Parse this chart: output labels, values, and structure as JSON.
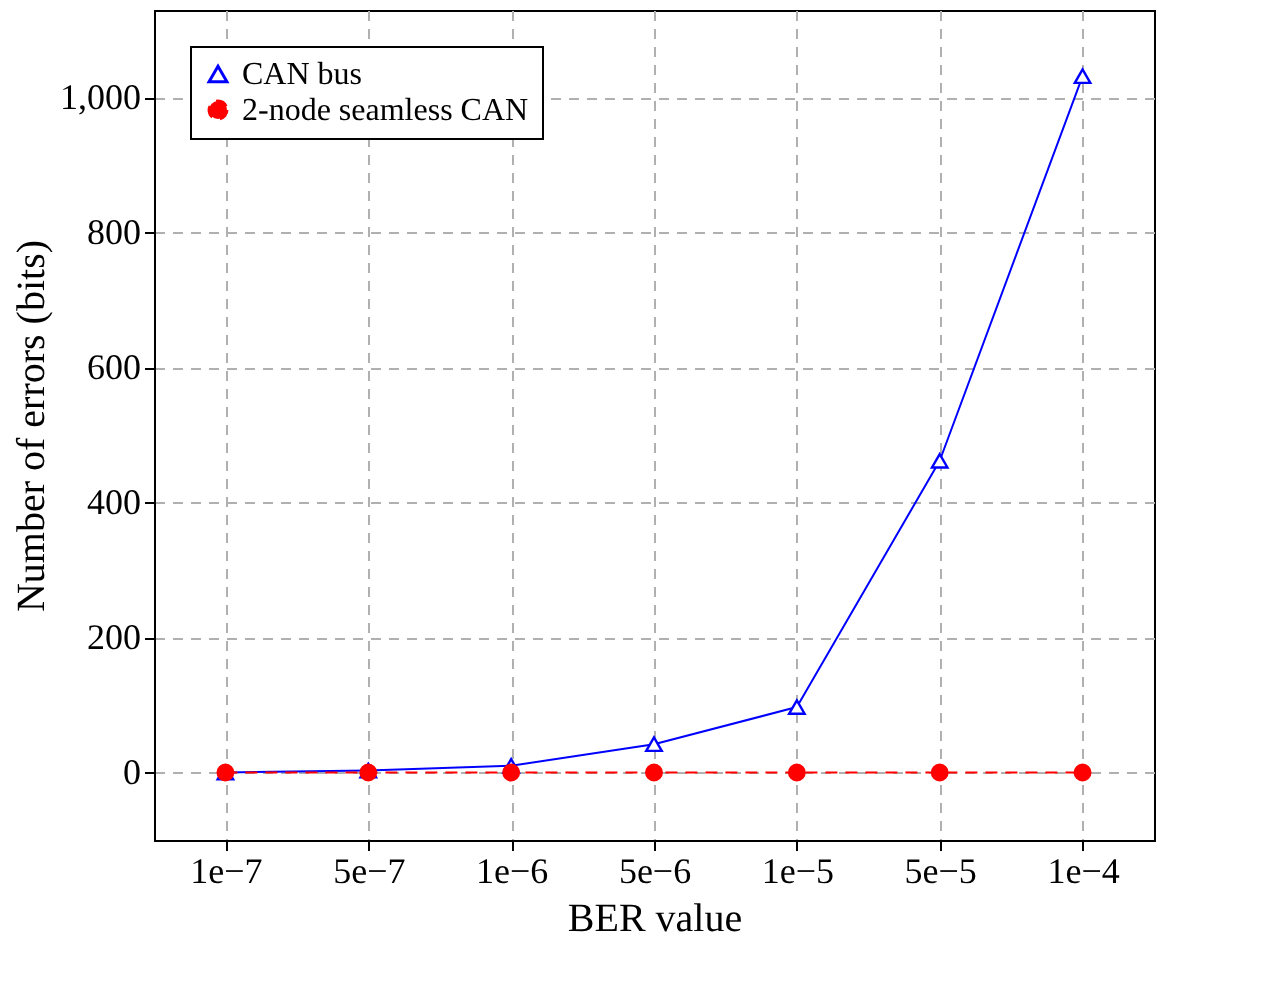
{
  "chart_data": {
    "type": "line",
    "xlabel": "BER value",
    "ylabel": "Number of errors (bits)",
    "categories": [
      "1e−7",
      "5e−7",
      "1e−6",
      "5e−6",
      "1e−5",
      "5e−5",
      "1e−4"
    ],
    "series": [
      {
        "name": "CAN bus",
        "color": "#0000ff",
        "values": [
          0,
          3,
          10,
          42,
          97,
          462,
          1032
        ],
        "marker": "triangle",
        "line_style": "solid"
      },
      {
        "name": "2-node seamless CAN",
        "color": "#ff0000",
        "values": [
          0,
          0,
          0,
          0,
          0,
          0,
          0
        ],
        "marker": "circle",
        "line_style": "dashed"
      }
    ],
    "ylim": [
      -100,
      1130
    ],
    "yticks": [
      0,
      200,
      400,
      600,
      800,
      {
        "value": 1000,
        "label": "1,000"
      }
    ],
    "grid": true,
    "legend": "top left"
  }
}
